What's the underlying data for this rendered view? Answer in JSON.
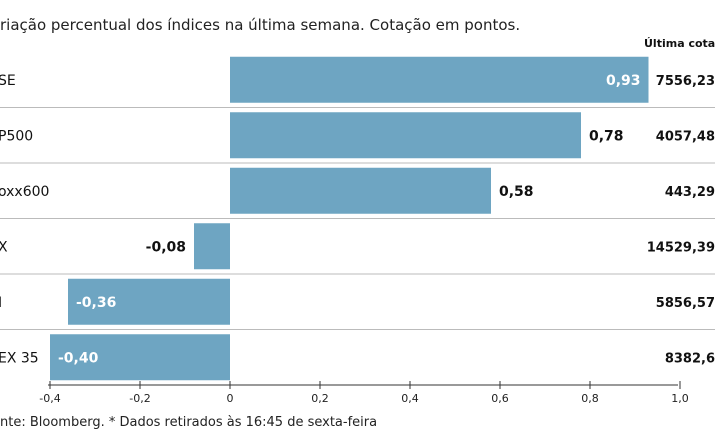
{
  "chart_data": {
    "type": "bar",
    "orientation": "horizontal",
    "title": "riação percentual dos índices na última semana. Cotação em pontos.",
    "categories": [
      "SE",
      "P500",
      "oxx600",
      "X",
      "I",
      "EX 35"
    ],
    "values": [
      0.93,
      0.78,
      0.58,
      -0.08,
      -0.36,
      -0.4
    ],
    "value_labels": [
      "0,93",
      "0,78",
      "0,58",
      "-0,08",
      "-0,36",
      "-0,40"
    ],
    "last_quote_header": "Última cotaç",
    "last_quotes": [
      "7556,23",
      "4057,48",
      "443,29",
      "14529,39",
      "5856,57",
      "8382,6"
    ],
    "xlim": [
      -0.4,
      1.0
    ],
    "x_ticks": [
      -0.4,
      -0.2,
      0,
      0.2,
      0.4,
      0.6,
      0.8,
      1.0
    ],
    "x_tick_labels": [
      "-0,4",
      "-0,2",
      "0",
      "0,2",
      "0,4",
      "0,6",
      "0,8",
      "1,0"
    ],
    "grid": false,
    "xlabel": "",
    "ylabel": "",
    "source": "nte: Bloomberg.  * Dados retirados às 16:45 de sexta-feira"
  },
  "colors": {
    "bar": "#6ea5c2",
    "text": "#111111",
    "label_inside": "#ffffff",
    "row_divider": "#bbbbbb",
    "axis": "#333333"
  }
}
